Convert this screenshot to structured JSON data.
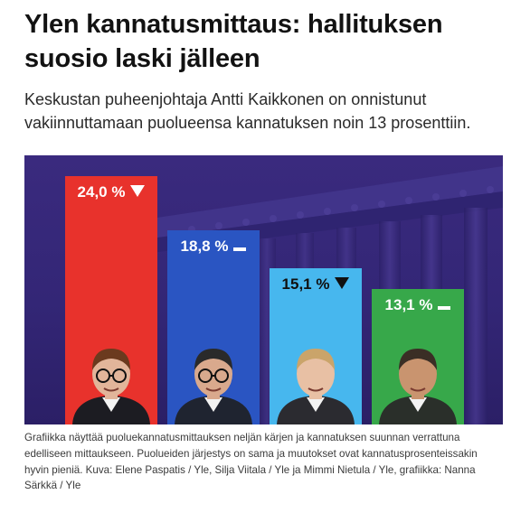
{
  "article": {
    "headline": "Ylen kannatusmittaus: hallituksen suosio laski jälleen",
    "lead": "Keskustan puheenjohtaja Antti Kaikkonen on onnistunut vakiinnuttamaan puolueensa kannatuksen noin 13 prosenttiin.",
    "caption": "Grafiikka näyttää puoluekannatusmittauksen neljän kärjen ja kannatuksen suunnan verrattuna edelliseen mittaukseen. Puolueiden järjestys on sama ja muutokset ovat kannatusprosenteissakin hyvin pieniä. Kuva: Elene Paspatis / Yle, Silja Viitala / Yle ja Mimmi Nietula / Yle, grafiikka: Nanna Särkkä / Yle"
  },
  "chart_data": {
    "type": "bar",
    "title": "",
    "xlabel": "",
    "ylabel": "",
    "ylim": [
      0,
      26
    ],
    "grid": false,
    "values": [
      24.0,
      18.8,
      15.1,
      13.1
    ],
    "labels": [
      "24,0 %",
      "18,8 %",
      "15,1 %",
      "13,1 %"
    ],
    "trends": [
      "down",
      "unchanged",
      "down",
      "unchanged"
    ],
    "colors": [
      "#e8322c",
      "#2a55c2",
      "#47b7ee",
      "#37a84a"
    ],
    "label_colors": [
      "#ffffff",
      "#ffffff",
      "#101010",
      "#ffffff"
    ]
  }
}
